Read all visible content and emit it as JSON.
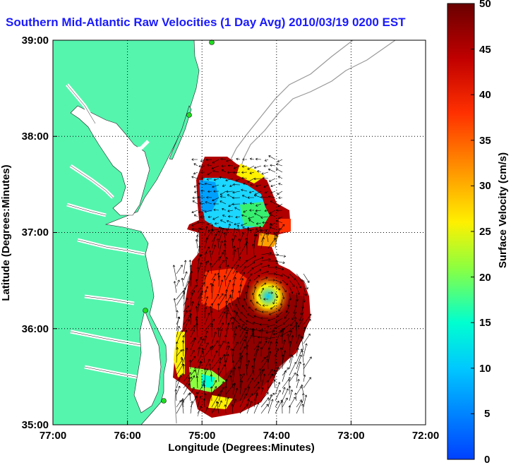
{
  "title": "Southern Mid-Atlantic Raw Velocities (1 Day Avg) 2010/03/19 0200 EST",
  "xlabel": "Longitude (Degrees:Minutes)",
  "ylabel": "Latitude (Degrees:Minutes)",
  "x_ticks": [
    "77:00",
    "76:00",
    "75:00",
    "74:00",
    "73:00",
    "72:00"
  ],
  "y_ticks": [
    "39:00",
    "38:00",
    "37:00",
    "36:00",
    "35:00"
  ],
  "colorbar": {
    "label": "Surface Velocity (cm/s)",
    "ticks": [
      "0",
      "5",
      "10",
      "15",
      "20",
      "25",
      "30",
      "35",
      "40",
      "45",
      "50"
    ],
    "range": [
      0,
      50
    ],
    "colors": [
      "#0040ff",
      "#00c8ff",
      "#00ffd0",
      "#8cff40",
      "#fff000",
      "#ffa000",
      "#ff3000",
      "#c00000",
      "#6a0000"
    ]
  },
  "colors": {
    "land": "#55f5ae",
    "title": "#1a1aff",
    "bathymetry": "#999999",
    "station": "#22dd22"
  },
  "map": {
    "projection": "lat-lon",
    "lon_range": [
      "77:00 W",
      "72:00 W"
    ],
    "lat_range": [
      "35:00 N",
      "39:00 N"
    ],
    "grid": "dotted"
  }
}
